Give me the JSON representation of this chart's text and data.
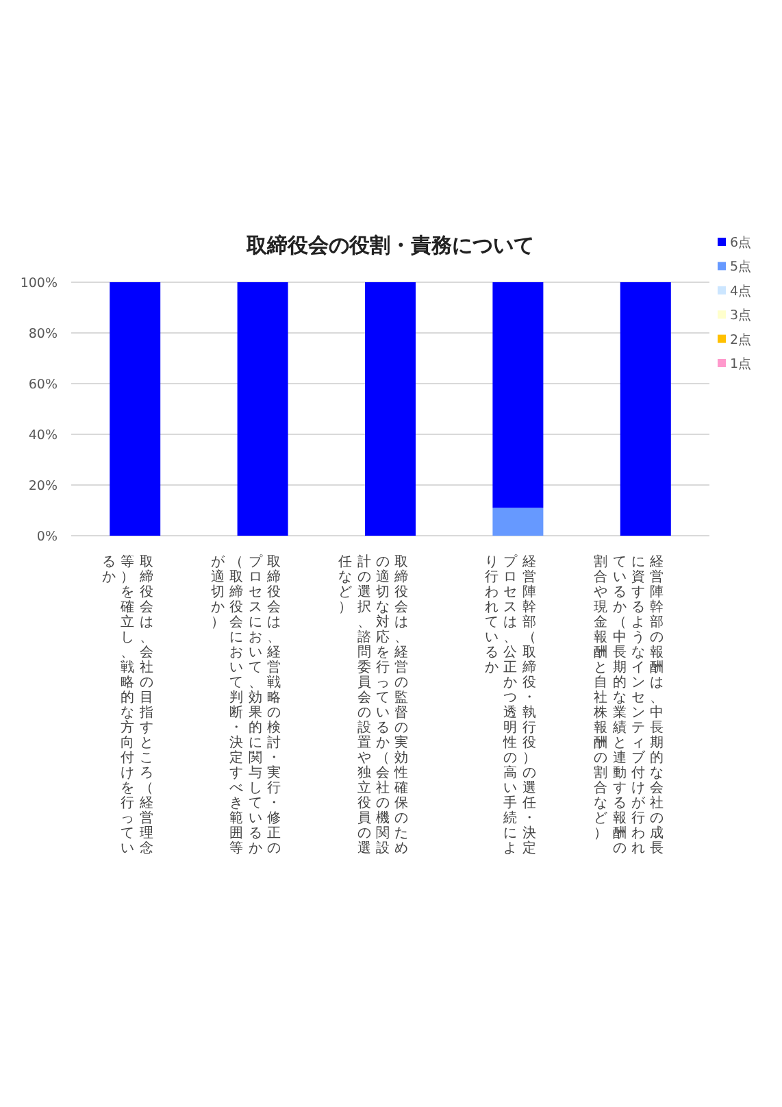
{
  "chart_data": {
    "type": "bar",
    "stacked": true,
    "title": "取締役会の役割・責務について",
    "categories": [
      "取締役会は、会社の目指すところ（経営理念等）を確立し、戦略的な方向付けを行っているか",
      "取締役会は、経営戦略の検討・実行・修正のプロセスにおいて、効果的に関与しているか（取締役会において判断・決定すべき範囲等が適切か）",
      "取締役会は、経営の監督の実効性確保のための適切な対応を行っているか（会社の機関設計の選択、諮問委員会の設置や独立役員の選任など）",
      "経営陣幹部（取締役・執行役）の選任・決定プロセスは、公正かつ透明性の高い手続により行われているか",
      "経営陣幹部の報酬は、中長期的な会社の成長に資するようなインセンティブ付けが行われているか（中長期的な業績と連動する報酬の割合や現金報酬と自社株報酬の割合など）"
    ],
    "series": [
      {
        "name": "1点",
        "color": "#ff99cc",
        "values": [
          0,
          0,
          0,
          0,
          0
        ]
      },
      {
        "name": "2点",
        "color": "#ffc000",
        "values": [
          0,
          0,
          0,
          0,
          0
        ]
      },
      {
        "name": "3点",
        "color": "#ffffcc",
        "values": [
          0,
          0,
          0,
          0,
          0
        ]
      },
      {
        "name": "4点",
        "color": "#cce6ff",
        "values": [
          0,
          0,
          0,
          0,
          0
        ]
      },
      {
        "name": "5点",
        "color": "#6699ff",
        "values": [
          0,
          0,
          0,
          11,
          0
        ]
      },
      {
        "name": "6点",
        "color": "#0000ff",
        "values": [
          100,
          100,
          100,
          89,
          100
        ]
      }
    ],
    "ylim": [
      0,
      100
    ],
    "yticks": [
      {
        "value": 0,
        "label": "0%"
      },
      {
        "value": 20,
        "label": "20%"
      },
      {
        "value": 40,
        "label": "40%"
      },
      {
        "value": 60,
        "label": "60%"
      },
      {
        "value": 80,
        "label": "80%"
      },
      {
        "value": 100,
        "label": "100%"
      }
    ],
    "grid": "y",
    "legend": "right"
  }
}
